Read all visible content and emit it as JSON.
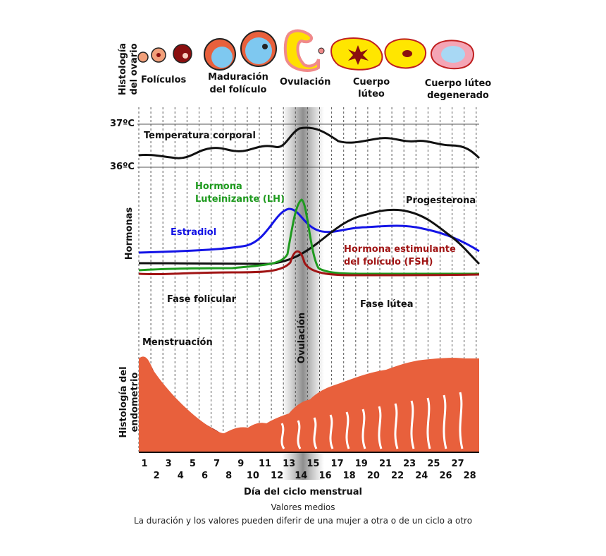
{
  "ovary": {
    "section_title": "Histología del ovario",
    "stages": [
      {
        "label": "Folículos"
      },
      {
        "label": "Maduración del folículo"
      },
      {
        "label": "Ovulación"
      },
      {
        "label": "Cuerpo lúteo"
      },
      {
        "label": "Cuerpo lúteo degenerado"
      }
    ]
  },
  "temperature": {
    "title": "Temperatura corporal",
    "upper_label": "37ºC",
    "lower_label": "36ºC",
    "curve_color": "#111111"
  },
  "hormones": {
    "section_title": "Hormonas",
    "series": [
      {
        "name": "Hormona Luteinizante (LH)",
        "line1": "Hormona",
        "line2": "Luteinizante (LH)",
        "color": "#1e9a1e"
      },
      {
        "name": "Estradiol",
        "color": "#1414e6"
      },
      {
        "name": "Progesterona",
        "color": "#111111"
      },
      {
        "name": "Hormona estimulante del folículo (FSH)",
        "line1": "Hormona estimulante",
        "line2": "del folículo (FSH)",
        "color": "#a01414"
      }
    ]
  },
  "phases": {
    "follicular": "Fase folicular",
    "luteal": "Fase lútea",
    "ovulation": "Ovulación",
    "menstruation": "Menstruación"
  },
  "endometrium": {
    "section_title": "Histología del endometrio",
    "tissue_color": "#e8603c",
    "shed_color": "#8a0f0f"
  },
  "axis": {
    "title": "Día del ciclo menstrual",
    "days": [
      "1",
      "2",
      "3",
      "4",
      "5",
      "6",
      "7",
      "8",
      "9",
      "10",
      "11",
      "12",
      "13",
      "14",
      "15",
      "16",
      "17",
      "18",
      "19",
      "20",
      "21",
      "22",
      "23",
      "24",
      "25",
      "26",
      "27",
      "28"
    ]
  },
  "footer": {
    "line1": "Valores medios",
    "line2": "La duración y los valores pueden diferir de una mujer a otra o de un ciclo a otro"
  }
}
